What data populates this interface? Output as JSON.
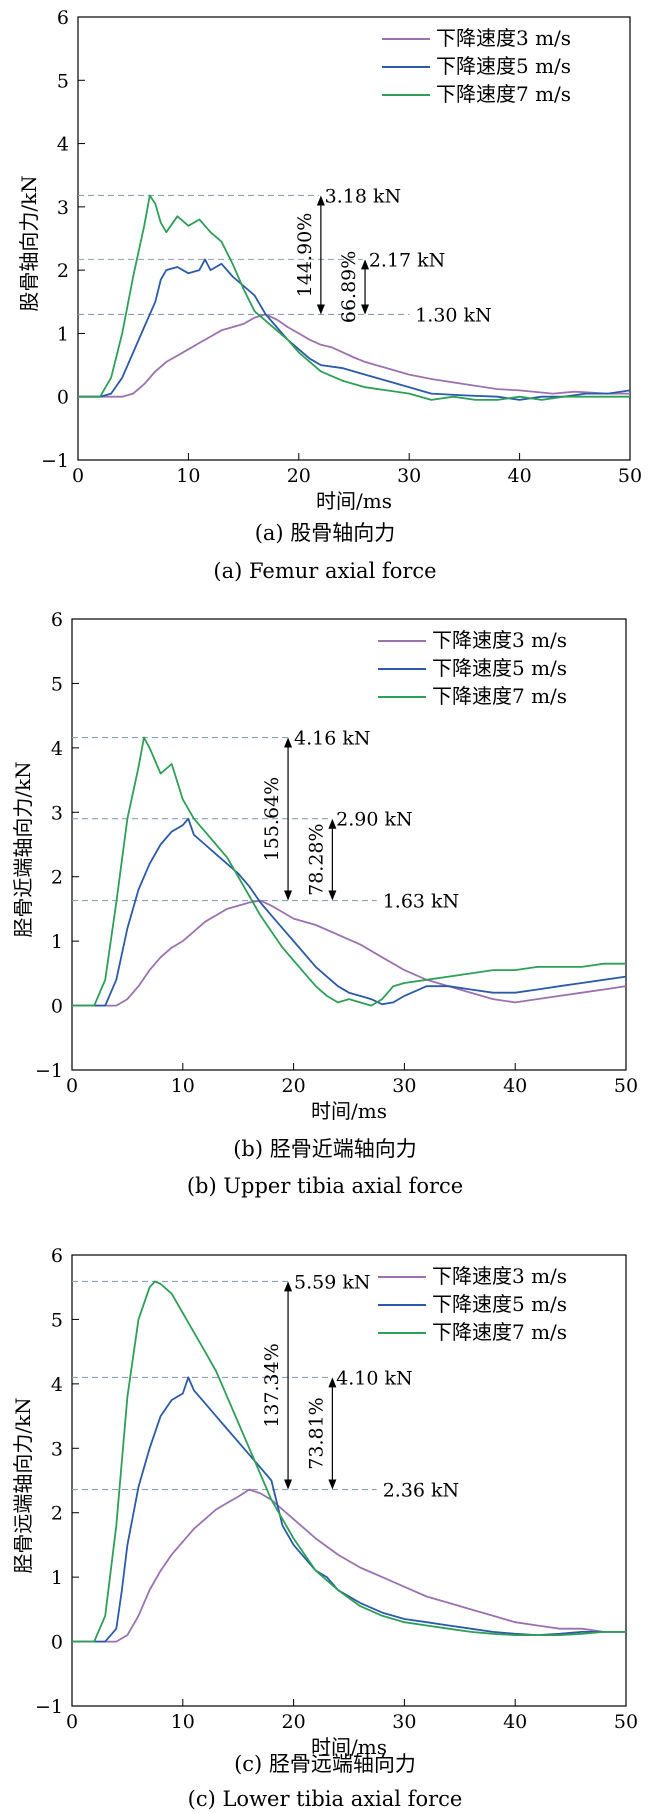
{
  "colors": {
    "v3": "#9b72b0",
    "v5": "#2b5aa8",
    "v7": "#2f9e57",
    "refline": "#8aa0bf"
  },
  "legend_labels": [
    "下降速度3 m/s",
    "下降速度5 m/s",
    "下降速度7 m/s"
  ],
  "panels": [
    {
      "caption_cn": "(a) 股骨轴向力",
      "caption_en": "(a) Femur axial force"
    },
    {
      "caption_cn": "(b) 胫骨近端轴向力",
      "caption_en": "(b) Upper tibia axial force"
    },
    {
      "caption_cn": "(c) 胫骨远端轴向力",
      "caption_en": "(c) Lower tibia axial force"
    }
  ],
  "chart_data": [
    {
      "type": "line",
      "xlabel": "时间/ms",
      "ylabel": "股骨轴向力/kN",
      "xlim": [
        0,
        50
      ],
      "ylim": [
        -1,
        6
      ],
      "xticks": [
        0,
        10,
        20,
        30,
        40,
        50
      ],
      "yticks": [
        -1,
        0,
        1,
        2,
        3,
        4,
        5,
        6
      ],
      "legend_position": "top-right",
      "series": [
        {
          "name": "下降速度3 m/s",
          "key": "v3",
          "x": [
            0,
            4,
            5,
            6,
            7,
            8,
            9,
            10,
            11,
            12,
            13,
            14,
            15,
            16,
            17,
            18,
            19,
            20,
            21,
            22,
            23,
            24,
            25,
            26,
            27,
            28,
            30,
            32,
            35,
            38,
            40,
            43,
            45,
            48,
            50
          ],
          "y": [
            0,
            0,
            0.05,
            0.2,
            0.4,
            0.55,
            0.65,
            0.75,
            0.85,
            0.95,
            1.05,
            1.1,
            1.15,
            1.25,
            1.3,
            1.22,
            1.1,
            1.0,
            0.9,
            0.82,
            0.78,
            0.7,
            0.62,
            0.55,
            0.5,
            0.45,
            0.35,
            0.28,
            0.2,
            0.12,
            0.1,
            0.05,
            0.08,
            0.05,
            0.05
          ]
        },
        {
          "name": "下降速度5 m/s",
          "key": "v5",
          "x": [
            0,
            2,
            3,
            4,
            5,
            6,
            7,
            7.5,
            8,
            9,
            10,
            11,
            11.5,
            12,
            13,
            14,
            15,
            16,
            17,
            18,
            19,
            20,
            21,
            22,
            24,
            26,
            28,
            30,
            32,
            35,
            38,
            40,
            42,
            44,
            46,
            48,
            50
          ],
          "y": [
            0,
            0,
            0.05,
            0.3,
            0.7,
            1.1,
            1.5,
            1.85,
            2.0,
            2.05,
            1.95,
            2.0,
            2.17,
            2.0,
            2.1,
            1.9,
            1.75,
            1.6,
            1.3,
            1.1,
            0.9,
            0.75,
            0.6,
            0.5,
            0.45,
            0.35,
            0.25,
            0.15,
            0.05,
            0.02,
            0,
            -0.05,
            0,
            0,
            0.05,
            0.05,
            0.1
          ]
        },
        {
          "name": "下降速度7 m/s",
          "key": "v7",
          "x": [
            0,
            2,
            3,
            4,
            5,
            6,
            6.5,
            7,
            7.5,
            8,
            9,
            10,
            11,
            12,
            13,
            14,
            15,
            16,
            17,
            18,
            19,
            20,
            22,
            24,
            26,
            28,
            30,
            32,
            34,
            36,
            38,
            40,
            42,
            44,
            46,
            48,
            50
          ],
          "y": [
            0,
            0,
            0.3,
            1.0,
            1.9,
            2.7,
            3.18,
            3.05,
            2.75,
            2.6,
            2.85,
            2.7,
            2.8,
            2.6,
            2.45,
            2.1,
            1.7,
            1.35,
            1.2,
            1.05,
            0.9,
            0.7,
            0.4,
            0.25,
            0.15,
            0.1,
            0.05,
            -0.05,
            0,
            -0.05,
            -0.05,
            0,
            -0.05,
            0,
            0,
            0,
            0
          ]
        }
      ],
      "reference_values": [
        3.18,
        2.17,
        1.3
      ],
      "reference_labels": [
        "3.18 kN",
        "2.17 kN",
        "1.30 kN"
      ],
      "increase_labels": [
        "144.90%",
        "66.89%"
      ],
      "increase_arrow_x": [
        22,
        26
      ]
    },
    {
      "type": "line",
      "xlabel": "时间/ms",
      "ylabel": "胫骨近端轴向力/kN",
      "xlim": [
        0,
        50
      ],
      "ylim": [
        -1,
        6
      ],
      "xticks": [
        0,
        10,
        20,
        30,
        40,
        50
      ],
      "yticks": [
        -1,
        0,
        1,
        2,
        3,
        4,
        5,
        6
      ],
      "legend_position": "top-right",
      "series": [
        {
          "name": "下降速度3 m/s",
          "key": "v3",
          "x": [
            0,
            4,
            5,
            6,
            7,
            8,
            9,
            10,
            11,
            12,
            13,
            14,
            15,
            16,
            17,
            18,
            19,
            20,
            22,
            24,
            26,
            28,
            30,
            32,
            34,
            36,
            38,
            40,
            42,
            44,
            46,
            48,
            50
          ],
          "y": [
            0,
            0,
            0.1,
            0.3,
            0.55,
            0.75,
            0.9,
            1.0,
            1.15,
            1.3,
            1.4,
            1.5,
            1.55,
            1.6,
            1.63,
            1.55,
            1.45,
            1.35,
            1.25,
            1.1,
            0.95,
            0.75,
            0.55,
            0.4,
            0.3,
            0.2,
            0.1,
            0.05,
            0.1,
            0.15,
            0.2,
            0.25,
            0.3
          ]
        },
        {
          "name": "下降速度5 m/s",
          "key": "v5",
          "x": [
            0,
            3,
            4,
            5,
            6,
            7,
            8,
            9,
            10,
            10.5,
            11,
            12,
            13,
            14,
            15,
            16,
            17,
            18,
            19,
            20,
            21,
            22,
            23,
            24,
            25,
            26,
            27,
            28,
            29,
            30,
            32,
            34,
            36,
            38,
            40,
            42,
            44,
            46,
            48,
            50
          ],
          "y": [
            0,
            0,
            0.4,
            1.2,
            1.8,
            2.2,
            2.5,
            2.7,
            2.8,
            2.9,
            2.65,
            2.5,
            2.35,
            2.2,
            2.05,
            1.85,
            1.6,
            1.4,
            1.2,
            1.0,
            0.8,
            0.6,
            0.45,
            0.3,
            0.2,
            0.15,
            0.1,
            0.02,
            0.05,
            0.15,
            0.3,
            0.3,
            0.25,
            0.2,
            0.2,
            0.25,
            0.3,
            0.35,
            0.4,
            0.45
          ]
        },
        {
          "name": "下降速度7 m/s",
          "key": "v7",
          "x": [
            0,
            2,
            3,
            4,
            5,
            6,
            6.5,
            7,
            8,
            9,
            10,
            11,
            12,
            13,
            14,
            15,
            16,
            17,
            18,
            19,
            20,
            21,
            22,
            23,
            24,
            25,
            26,
            27,
            28,
            29,
            30,
            32,
            34,
            36,
            38,
            40,
            42,
            44,
            46,
            48,
            50
          ],
          "y": [
            0,
            0,
            0.4,
            1.6,
            2.9,
            3.7,
            4.16,
            4.0,
            3.6,
            3.75,
            3.2,
            2.9,
            2.7,
            2.5,
            2.3,
            2.0,
            1.7,
            1.4,
            1.15,
            0.9,
            0.7,
            0.5,
            0.3,
            0.15,
            0.05,
            0.1,
            0.05,
            0.0,
            0.1,
            0.3,
            0.35,
            0.4,
            0.45,
            0.5,
            0.55,
            0.55,
            0.6,
            0.6,
            0.6,
            0.65,
            0.65
          ]
        }
      ],
      "reference_values": [
        4.16,
        2.9,
        1.63
      ],
      "reference_labels": [
        "4.16 kN",
        "2.90 kN",
        "1.63 kN"
      ],
      "increase_labels": [
        "155.64%",
        "78.28%"
      ],
      "increase_arrow_x": [
        19.5,
        23.5
      ]
    },
    {
      "type": "line",
      "xlabel": "时间/ms",
      "ylabel": "胫骨远端轴向力/kN",
      "xlim": [
        0,
        50
      ],
      "ylim": [
        -1,
        6
      ],
      "xticks": [
        0,
        10,
        20,
        30,
        40,
        50
      ],
      "yticks": [
        -1,
        0,
        1,
        2,
        3,
        4,
        5,
        6
      ],
      "legend_position": "top-right",
      "series": [
        {
          "name": "下降速度3 m/s",
          "key": "v3",
          "x": [
            0,
            4,
            5,
            6,
            7,
            8,
            9,
            10,
            11,
            12,
            13,
            14,
            15,
            16,
            17,
            18,
            19,
            20,
            21,
            22,
            24,
            26,
            28,
            30,
            32,
            34,
            36,
            38,
            40,
            42,
            44,
            46,
            48,
            50
          ],
          "y": [
            0,
            0,
            0.1,
            0.4,
            0.8,
            1.1,
            1.35,
            1.55,
            1.75,
            1.9,
            2.05,
            2.15,
            2.25,
            2.36,
            2.3,
            2.2,
            2.05,
            1.9,
            1.75,
            1.6,
            1.35,
            1.15,
            1.0,
            0.85,
            0.7,
            0.6,
            0.5,
            0.4,
            0.3,
            0.25,
            0.2,
            0.2,
            0.15,
            0.15
          ]
        },
        {
          "name": "下降速度5 m/s",
          "key": "v5",
          "x": [
            0,
            3,
            4,
            4.5,
            5,
            6,
            7,
            8,
            9,
            10,
            10.5,
            11,
            12,
            13,
            14,
            15,
            16,
            17,
            18,
            19,
            20,
            21,
            22,
            23,
            24,
            26,
            28,
            30,
            32,
            34,
            36,
            38,
            40,
            42,
            44,
            46,
            48,
            50
          ],
          "y": [
            0,
            0,
            0.2,
            0.8,
            1.5,
            2.4,
            3.0,
            3.5,
            3.75,
            3.85,
            4.1,
            3.9,
            3.7,
            3.5,
            3.3,
            3.1,
            2.9,
            2.7,
            2.5,
            1.8,
            1.5,
            1.3,
            1.1,
            1.0,
            0.8,
            0.6,
            0.45,
            0.35,
            0.3,
            0.25,
            0.2,
            0.15,
            0.12,
            0.1,
            0.12,
            0.15,
            0.15,
            0.15
          ]
        },
        {
          "name": "下降速度7 m/s",
          "key": "v7",
          "x": [
            0,
            2,
            3,
            4,
            5,
            6,
            7,
            7.5,
            8,
            9,
            10,
            11,
            12,
            13,
            14,
            15,
            16,
            17,
            18,
            19,
            20,
            21,
            22,
            24,
            26,
            28,
            30,
            32,
            34,
            36,
            38,
            40,
            42,
            44,
            46,
            48,
            50
          ],
          "y": [
            0,
            0,
            0.4,
            1.8,
            3.8,
            5.0,
            5.5,
            5.59,
            5.55,
            5.4,
            5.1,
            4.8,
            4.5,
            4.2,
            3.8,
            3.4,
            3.0,
            2.6,
            2.2,
            1.9,
            1.6,
            1.35,
            1.1,
            0.8,
            0.55,
            0.4,
            0.3,
            0.25,
            0.2,
            0.15,
            0.12,
            0.1,
            0.1,
            0.1,
            0.12,
            0.15,
            0.15
          ]
        }
      ],
      "reference_values": [
        5.59,
        4.1,
        2.36
      ],
      "reference_labels": [
        "5.59 kN",
        "4.10 kN",
        "2.36 kN"
      ],
      "increase_labels": [
        "137.34%",
        "73.81%"
      ],
      "increase_arrow_x": [
        19.5,
        23.5
      ]
    }
  ]
}
